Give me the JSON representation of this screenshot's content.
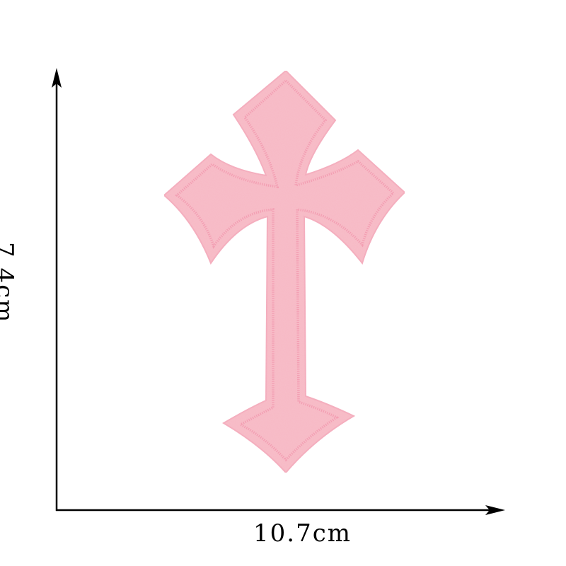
{
  "product": {
    "icon": "cross-patch",
    "fill_color": "#f7b8c4",
    "stitch_color": "#f39fb3",
    "edge_color": "#f4aabb"
  },
  "dimensions": {
    "width_label": "10.7cm",
    "height_label": "7.4cm",
    "axis_color": "#000000"
  }
}
